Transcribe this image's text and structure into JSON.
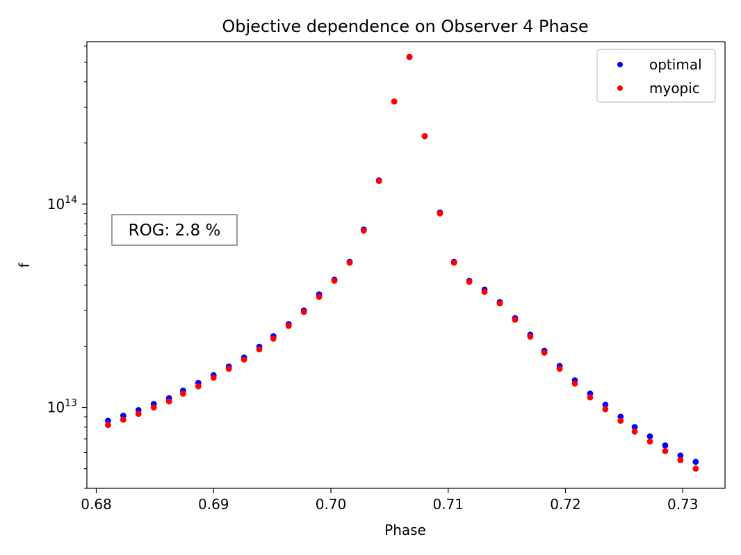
{
  "chart_data": {
    "type": "scatter",
    "title": "Objective dependence on Observer 4 Phase",
    "xlabel": "Phase",
    "ylabel": "f",
    "yscale": "log",
    "xlim": [
      0.6792,
      0.7336
    ],
    "ylim": [
      4000000000000.0,
      630000000000000.0
    ],
    "xticks": [
      {
        "value": 0.68,
        "label": "0.68"
      },
      {
        "value": 0.69,
        "label": "0.69"
      },
      {
        "value": 0.7,
        "label": "0.70"
      },
      {
        "value": 0.71,
        "label": "0.71"
      },
      {
        "value": 0.72,
        "label": "0.72"
      },
      {
        "value": 0.73,
        "label": "0.73"
      }
    ],
    "yticks_major": [
      {
        "value": 10000000000000.0,
        "base": "10",
        "exp": "13"
      },
      {
        "value": 100000000000000.0,
        "base": "10",
        "exp": "14"
      }
    ],
    "yticks_minor": [
      4000000000000.0,
      5000000000000.0,
      6000000000000.0,
      7000000000000.0,
      8000000000000.0,
      9000000000000.0,
      20000000000000.0,
      30000000000000.0,
      40000000000000.0,
      50000000000000.0,
      60000000000000.0,
      70000000000000.0,
      80000000000000.0,
      90000000000000.0,
      200000000000000.0,
      300000000000000.0,
      400000000000000.0,
      500000000000000.0,
      600000000000000.0
    ],
    "legend_position": "top-right",
    "grid": false,
    "series": [
      {
        "name": "optimal",
        "color": "#0000ff",
        "points": [
          [
            0.681,
            8600000000000.0
          ],
          [
            0.6823,
            9100000000000.0
          ],
          [
            0.6836,
            9700000000000.0
          ],
          [
            0.6849,
            10400000000000.0
          ],
          [
            0.6862,
            11100000000000.0
          ],
          [
            0.6874,
            12100000000000.0
          ],
          [
            0.6887,
            13200000000000.0
          ],
          [
            0.69,
            14400000000000.0
          ],
          [
            0.6913,
            15900000000000.0
          ],
          [
            0.6926,
            17600000000000.0
          ],
          [
            0.6939,
            19900000000000.0
          ],
          [
            0.6951,
            22400000000000.0
          ],
          [
            0.6964,
            25700000000000.0
          ],
          [
            0.6977,
            30000000000000.0
          ],
          [
            0.699,
            36000000000000.0
          ],
          [
            0.7003,
            42500000000000.0
          ],
          [
            0.7016,
            52000000000000.0
          ],
          [
            0.7028,
            75000000000000.0
          ],
          [
            0.7041,
            131000000000000.0
          ],
          [
            0.7054,
            320000000000000.0
          ],
          [
            0.7067,
            530000000000000.0
          ],
          [
            0.708,
            216000000000000.0
          ],
          [
            0.7093,
            91000000000000.0
          ],
          [
            0.7105,
            52000000000000.0
          ],
          [
            0.7118,
            42000000000000.0
          ],
          [
            0.7131,
            38000000000000.0
          ],
          [
            0.7144,
            33000000000000.0
          ],
          [
            0.7157,
            27500000000000.0
          ],
          [
            0.717,
            22800000000000.0
          ],
          [
            0.7182,
            19000000000000.0
          ],
          [
            0.7195,
            16000000000000.0
          ],
          [
            0.7208,
            13600000000000.0
          ],
          [
            0.7221,
            11700000000000.0
          ],
          [
            0.7234,
            10300000000000.0
          ],
          [
            0.7247,
            9000000000000.0
          ],
          [
            0.7259,
            8000000000000.0
          ],
          [
            0.7272,
            7200000000000.0
          ],
          [
            0.7285,
            6500000000000.0
          ],
          [
            0.7298,
            5800000000000.0
          ],
          [
            0.7311,
            5400000000000.0
          ]
        ]
      },
      {
        "name": "myopic",
        "color": "#ff0000",
        "points": [
          [
            0.681,
            8200000000000.0
          ],
          [
            0.6823,
            8700000000000.0
          ],
          [
            0.6836,
            9300000000000.0
          ],
          [
            0.6849,
            10000000000000.0
          ],
          [
            0.6862,
            10700000000000.0
          ],
          [
            0.6874,
            11700000000000.0
          ],
          [
            0.6887,
            12700000000000.0
          ],
          [
            0.69,
            14000000000000.0
          ],
          [
            0.6913,
            15500000000000.0
          ],
          [
            0.6926,
            17200000000000.0
          ],
          [
            0.6939,
            19300000000000.0
          ],
          [
            0.6951,
            21800000000000.0
          ],
          [
            0.6964,
            25200000000000.0
          ],
          [
            0.6977,
            29500000000000.0
          ],
          [
            0.699,
            35000000000000.0
          ],
          [
            0.7003,
            42000000000000.0
          ],
          [
            0.7016,
            51500000000000.0
          ],
          [
            0.7028,
            74000000000000.0
          ],
          [
            0.7041,
            130000000000000.0
          ],
          [
            0.7054,
            320000000000000.0
          ],
          [
            0.7067,
            530000000000000.0
          ],
          [
            0.708,
            216000000000000.0
          ],
          [
            0.7093,
            90000000000000.0
          ],
          [
            0.7105,
            51500000000000.0
          ],
          [
            0.7118,
            41500000000000.0
          ],
          [
            0.7131,
            37000000000000.0
          ],
          [
            0.7144,
            32500000000000.0
          ],
          [
            0.7157,
            27000000000000.0
          ],
          [
            0.717,
            22300000000000.0
          ],
          [
            0.7182,
            18600000000000.0
          ],
          [
            0.7195,
            15500000000000.0
          ],
          [
            0.7208,
            13100000000000.0
          ],
          [
            0.7221,
            11200000000000.0
          ],
          [
            0.7234,
            9800000000000.0
          ],
          [
            0.7247,
            8600000000000.0
          ],
          [
            0.7259,
            7600000000000.0
          ],
          [
            0.7272,
            6800000000000.0
          ],
          [
            0.7285,
            6100000000000.0
          ],
          [
            0.7298,
            5500000000000.0
          ],
          [
            0.7311,
            5000000000000.0
          ]
        ]
      }
    ],
    "annotation": {
      "text": "ROG: 2.8 %",
      "position": "left-middle"
    }
  }
}
